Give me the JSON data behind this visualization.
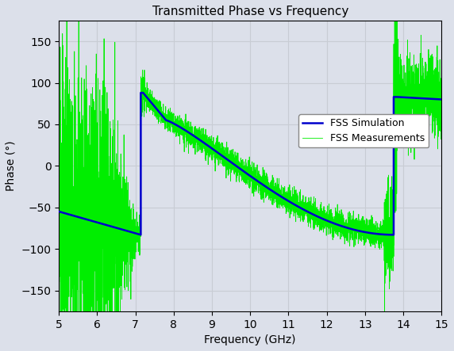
{
  "title": "Transmitted Phase vs Frequency",
  "xlabel": "Frequency (GHz)",
  "ylabel": "Phase (°)",
  "xlim": [
    5,
    15
  ],
  "ylim": [
    -175,
    175
  ],
  "xticks": [
    5,
    6,
    7,
    8,
    9,
    10,
    11,
    12,
    13,
    14,
    15
  ],
  "yticks": [
    -150,
    -100,
    -50,
    0,
    50,
    100,
    150
  ],
  "grid_color": "#c8ccd4",
  "background_color": "#dce0ea",
  "sim_color": "#0000cc",
  "meas_color": "#00ee00",
  "legend_labels": [
    "FSS Simulation",
    "FSS Measurements"
  ],
  "sim_linewidth": 1.8,
  "meas_linewidth": 0.6,
  "title_fontsize": 11,
  "label_fontsize": 10
}
